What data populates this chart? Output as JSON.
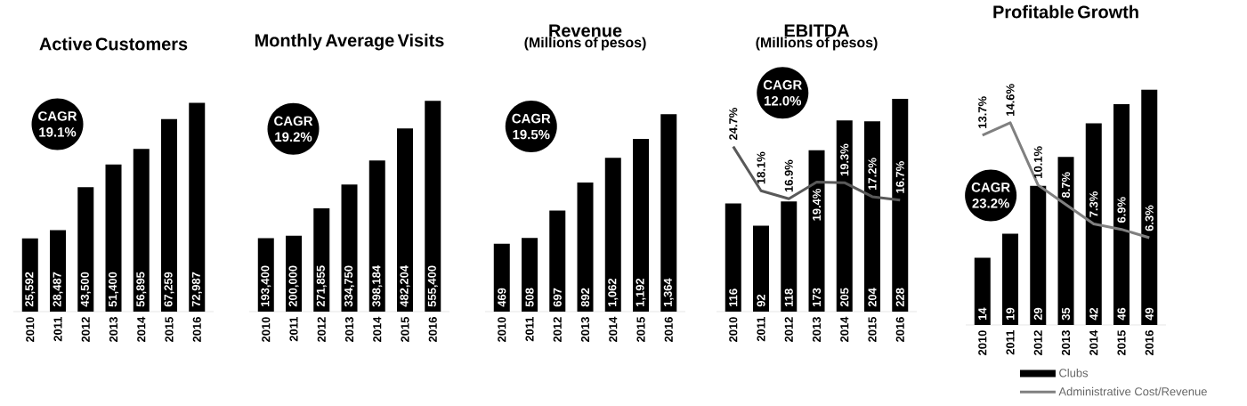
{
  "chart_data": [
    {
      "type": "bar",
      "title": "Active Customers",
      "categories": [
        "2010",
        "2011",
        "2012",
        "2013",
        "2014",
        "2015",
        "2016"
      ],
      "series": [
        {
          "color": "#000000",
          "values": [
            25592,
            28487,
            43500,
            51400,
            56895,
            67259,
            72987
          ],
          "value_labels": [
            "25,592",
            "28,487",
            "43,500",
            "51,400",
            "56,895",
            "67,259",
            "72,987"
          ]
        }
      ],
      "tick_labels": "x",
      "annotations": [
        "CAGR 19.1%"
      ]
    },
    {
      "type": "bar",
      "title": "Monthly Average Visits",
      "categories": [
        "2010",
        "2011",
        "2012",
        "2013",
        "2014",
        "2015",
        "2016"
      ],
      "series": [
        {
          "color": "#000000",
          "values": [
            193400,
            200000,
            271855,
            334750,
            398184,
            482204,
            555400
          ],
          "value_labels": [
            "193,400",
            "200,000",
            "271,855",
            "334,750",
            "398,184",
            "482,204",
            "555,400"
          ]
        }
      ],
      "tick_labels": "x",
      "annotations": [
        "CAGR 19.2%"
      ]
    },
    {
      "type": "bar",
      "title": "Revenue",
      "subtitle": "(Millions of pesos)",
      "categories": [
        "2010",
        "2011",
        "2012",
        "2013",
        "2014",
        "2015",
        "2016"
      ],
      "series": [
        {
          "color": "#000000",
          "values": [
            469,
            508,
            697,
            892,
            1062,
            1192,
            1364
          ],
          "value_labels": [
            "469",
            "508",
            "697",
            "892",
            "1,062",
            "1,192",
            "1,364"
          ]
        }
      ],
      "tick_labels": "x",
      "annotations": [
        "CAGR 19.5%"
      ]
    },
    {
      "type": "bar",
      "title": "EBITDA",
      "subtitle": "(Millions of pesos)",
      "categories": [
        "2010",
        "2011",
        "2012",
        "2013",
        "2014",
        "2015",
        "2016"
      ],
      "series": [
        {
          "color": "#000000",
          "values": [
            116,
            92,
            118,
            173,
            205,
            204,
            228
          ],
          "value_labels": [
            "116",
            "92",
            "118",
            "173",
            "205",
            "204",
            "228"
          ]
        },
        {
          "type": "line",
          "axis": "y2",
          "color": "#595959",
          "values": [
            24.7,
            18.1,
            16.9,
            19.4,
            19.3,
            17.2,
            16.7
          ],
          "value_labels": [
            "24.7%",
            "18.1%",
            "16.9%",
            "19.4%",
            "19.3%",
            "17.2%",
            "16.7%"
          ]
        }
      ],
      "tick_labels": "x",
      "annotations": [
        "CAGR 12.0%"
      ]
    },
    {
      "type": "bar",
      "title": "Profitable Growth",
      "categories": [
        "2010",
        "2011",
        "2012",
        "2013",
        "2014",
        "2015",
        "2016"
      ],
      "series": [
        {
          "name": "Clubs",
          "color": "#000000",
          "values": [
            14,
            19,
            29,
            35,
            42,
            46,
            49
          ],
          "value_labels": [
            "14",
            "19",
            "29",
            "35",
            "42",
            "46",
            "49"
          ]
        },
        {
          "type": "line",
          "axis": "y2",
          "name": "Administrative Cost/Revenue",
          "color": "#808080",
          "values": [
            13.7,
            14.6,
            10.1,
            8.7,
            7.3,
            6.9,
            6.3
          ],
          "value_labels": [
            "13.7%",
            "14.6%",
            "10.1%",
            "8.7%",
            "7.3%",
            "6.9%",
            "6.3%"
          ]
        }
      ],
      "tick_labels": "x",
      "legend": "bottom",
      "annotations": [
        "CAGR 23.2%"
      ]
    }
  ]
}
